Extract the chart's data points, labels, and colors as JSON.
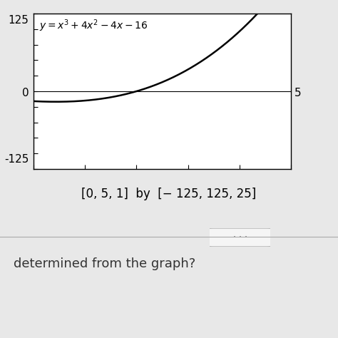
{
  "xmin": 0,
  "xmax": 5,
  "xstep": 1,
  "ymin": -125,
  "ymax": 125,
  "ystep": 25,
  "curve_color": "#000000",
  "plot_bg_color": "#ffffff",
  "outer_bg_color": "#e8e8e8",
  "bottom_bg_color": "#dce0e8",
  "equation_text": "y = x³ + 4x² − 4x − 16",
  "caption": "[0, 5, 1]  by  [− 125, 125, 25]",
  "bottom_text": "determined from the graph?",
  "label_125": "125",
  "label_0": "0",
  "label_neg125": "-125",
  "label_5": "5"
}
